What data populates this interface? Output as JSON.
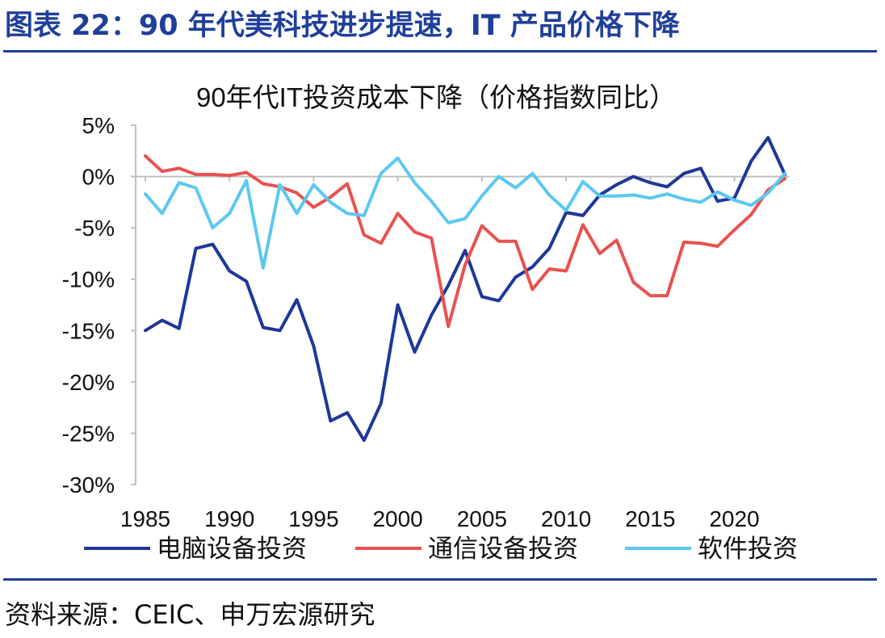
{
  "figure_title": "图表 22：90 年代美科技进步提速，IT 产品价格下降",
  "source": "资料来源：CEIC、申万宏源研究",
  "colors": {
    "accent": "#1f3f99",
    "computer": "#1e3799",
    "telecom": "#e8524f",
    "software": "#5bc8f0",
    "axis": "#bfbfbf"
  },
  "chart_data": {
    "type": "line",
    "title": "90年代IT投资成本下降（价格指数同比）",
    "xlabel": "",
    "ylabel": "",
    "ylim": [
      -30,
      5
    ],
    "yticks": [
      5,
      0,
      -5,
      -10,
      -15,
      -20,
      -25,
      -30
    ],
    "ytick_labels": [
      "5%",
      "0%",
      "-5%",
      "-10%",
      "-15%",
      "-20%",
      "-25%",
      "-30%"
    ],
    "xlim": [
      1985,
      2023
    ],
    "xticks": [
      1985,
      1990,
      1995,
      2000,
      2005,
      2010,
      2015,
      2020
    ],
    "xtick_labels": [
      "1985",
      "1990",
      "1995",
      "2000",
      "2005",
      "2010",
      "2015",
      "2020"
    ],
    "legend_position": "bottom",
    "x": [
      1985,
      1986,
      1987,
      1988,
      1989,
      1990,
      1991,
      1992,
      1993,
      1994,
      1995,
      1996,
      1997,
      1998,
      1999,
      2000,
      2001,
      2002,
      2003,
      2004,
      2005,
      2006,
      2007,
      2008,
      2009,
      2010,
      2011,
      2012,
      2013,
      2014,
      2015,
      2016,
      2017,
      2018,
      2019,
      2020,
      2021,
      2022,
      2023
    ],
    "series": [
      {
        "name": "电脑设备投资",
        "color_key": "computer",
        "values": [
          -15.0,
          -14.0,
          -14.8,
          -7.0,
          -6.6,
          -9.2,
          -10.2,
          -14.7,
          -15.0,
          -12.0,
          -16.5,
          -23.8,
          -23.0,
          -25.7,
          -22.1,
          -12.5,
          -17.1,
          -13.5,
          -10.6,
          -7.2,
          -11.7,
          -12.1,
          -9.8,
          -8.8,
          -7.0,
          -3.5,
          -3.8,
          -1.8,
          -0.8,
          0.0,
          -0.6,
          -1.0,
          0.3,
          0.8,
          -2.4,
          -2.1,
          1.5,
          3.8,
          0.2
        ]
      },
      {
        "name": "通信设备投资",
        "color_key": "telecom",
        "values": [
          2.0,
          0.5,
          0.8,
          0.2,
          0.2,
          0.1,
          0.4,
          -0.7,
          -1.0,
          -1.6,
          -3.0,
          -2.0,
          -0.7,
          -5.7,
          -6.5,
          -3.6,
          -5.4,
          -6.0,
          -14.6,
          -8.6,
          -4.8,
          -6.3,
          -6.3,
          -11.0,
          -9.0,
          -9.2,
          -4.7,
          -7.5,
          -6.2,
          -10.3,
          -11.6,
          -11.6,
          -6.4,
          -6.5,
          -6.8,
          -5.2,
          -3.7,
          -1.3,
          -0.2
        ]
      },
      {
        "name": "软件投资",
        "color_key": "software",
        "values": [
          -1.7,
          -3.6,
          -0.6,
          -1.1,
          -5.0,
          -3.6,
          -0.4,
          -8.9,
          -0.8,
          -3.6,
          -0.8,
          -2.5,
          -3.6,
          -3.8,
          0.3,
          1.8,
          -0.6,
          -2.4,
          -4.5,
          -4.1,
          -1.9,
          0.0,
          -1.1,
          0.3,
          -1.8,
          -3.3,
          -0.5,
          -1.9,
          -1.9,
          -1.8,
          -2.1,
          -1.7,
          -2.2,
          -2.5,
          -1.5,
          -2.3,
          -2.8,
          -1.6,
          0.3
        ]
      }
    ]
  }
}
